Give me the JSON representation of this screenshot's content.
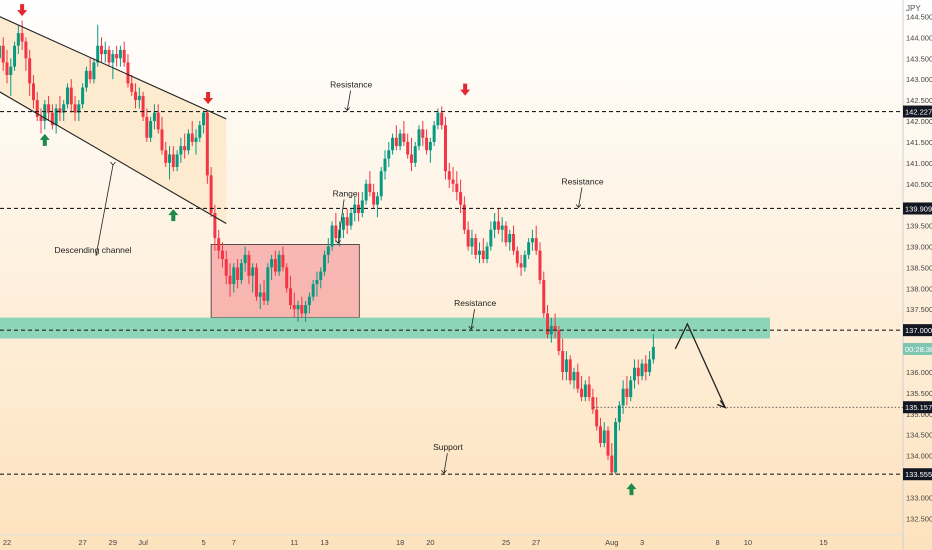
{
  "chart_data": {
    "type": "candlestick",
    "currency_label": "JPY",
    "colors": {
      "up": "#089981",
      "down": "#f23645",
      "background_top": "#ffffff",
      "background_bottom": "#fde2bd",
      "channel_fill": "#fde9cc",
      "range_fill": "#f5a3a3",
      "zone_fill": "#7fd1b5",
      "arrow_up": "#1b8a4a",
      "arrow_down": "#e0282e",
      "current_price_label": "#7fc6b0"
    },
    "y_ticks": [
      "144.500",
      "144.000",
      "143.500",
      "143.000",
      "142.500",
      "142.000",
      "141.500",
      "141.000",
      "140.500",
      "140.000",
      "139.500",
      "139.000",
      "138.500",
      "138.000",
      "137.500",
      "137.000",
      "136.500",
      "136.000",
      "135.500",
      "135.000",
      "134.500",
      "134.000",
      "133.500",
      "133.000",
      "132.500"
    ],
    "ylim": [
      132.15,
      144.75
    ],
    "x_ticks": [
      {
        "label": "22",
        "day": 0
      },
      {
        "label": "27",
        "day": 5
      },
      {
        "label": "29",
        "day": 7
      },
      {
        "label": "Jul",
        "day": 9
      },
      {
        "label": "5",
        "day": 13
      },
      {
        "label": "7",
        "day": 15
      },
      {
        "label": "11",
        "day": 19
      },
      {
        "label": "13",
        "day": 21
      },
      {
        "label": "18",
        "day": 26
      },
      {
        "label": "20",
        "day": 28
      },
      {
        "label": "25",
        "day": 33
      },
      {
        "label": "27",
        "day": 35
      },
      {
        "label": "Aug",
        "day": 40
      },
      {
        "label": "3",
        "day": 42
      },
      {
        "label": "8",
        "day": 47
      },
      {
        "label": "10",
        "day": 49
      },
      {
        "label": "15",
        "day": 54
      }
    ],
    "price_labels": [
      {
        "value": 142.227,
        "text": "142.227"
      },
      {
        "value": 139.909,
        "text": "139.909"
      },
      {
        "value": 137.0,
        "text": "137.000"
      },
      {
        "value": 135.157,
        "text": "135.157"
      },
      {
        "value": 133.555,
        "text": "133.555"
      }
    ],
    "current_price": {
      "value": 136.55,
      "text": "00:28:38"
    },
    "levels": [
      {
        "name": "Resistance",
        "value": 142.227,
        "label_day": 22.5
      },
      {
        "name": "Resistance",
        "value": 139.909,
        "label_day": 37.8
      },
      {
        "name": "Resistance",
        "value": 137.0,
        "label_day": 30.7
      },
      {
        "name": "Support",
        "value": 133.555,
        "label_day": 28.9
      }
    ],
    "zone": {
      "low": 136.8,
      "high": 137.3
    },
    "range_box": {
      "label": "Range",
      "day_start": 13.5,
      "day_end": 23.3,
      "low": 137.3,
      "high": 139.05
    },
    "channel": {
      "label": "Descending channel",
      "upper": [
        [
          -0.5,
          144.5
        ],
        [
          14.5,
          142.05
        ]
      ],
      "lower": [
        [
          -0.5,
          142.7
        ],
        [
          14.5,
          139.55
        ]
      ]
    },
    "projection": [
      [
        44.2,
        136.55
      ],
      [
        45.0,
        137.15
      ],
      [
        47.5,
        135.15
      ]
    ],
    "signals": [
      {
        "type": "down",
        "day": 1.0,
        "price": 144.65
      },
      {
        "type": "up",
        "day": 2.5,
        "price": 141.55
      },
      {
        "type": "up",
        "day": 11.0,
        "price": 139.75
      },
      {
        "type": "down",
        "day": 13.3,
        "price": 142.55
      },
      {
        "type": "down",
        "day": 30.3,
        "price": 142.75
      },
      {
        "type": "up",
        "day": 41.3,
        "price": 133.2
      }
    ],
    "candles_open_high_low_close": [
      [
        -0.5,
        143.5,
        143.9,
        143.3,
        143.8
      ],
      [
        -0.25,
        143.8,
        144.0,
        143.2,
        143.4
      ],
      [
        0.0,
        143.4,
        143.7,
        142.9,
        143.1
      ],
      [
        0.25,
        143.1,
        143.5,
        142.6,
        143.3
      ],
      [
        0.5,
        143.3,
        143.9,
        143.2,
        143.8
      ],
      [
        0.75,
        143.8,
        144.3,
        143.6,
        144.1
      ],
      [
        1.0,
        144.1,
        144.4,
        143.7,
        143.9
      ],
      [
        1.25,
        143.9,
        144.0,
        143.2,
        143.5
      ],
      [
        1.5,
        143.5,
        143.7,
        142.6,
        142.9
      ],
      [
        1.75,
        142.9,
        143.1,
        142.3,
        142.5
      ],
      [
        2.0,
        142.5,
        142.7,
        142.0,
        142.1
      ],
      [
        2.25,
        142.1,
        142.3,
        141.7,
        142.0
      ],
      [
        2.5,
        142.0,
        142.5,
        141.8,
        142.4
      ],
      [
        2.75,
        142.4,
        142.6,
        142.0,
        142.2
      ],
      [
        3.0,
        142.2,
        142.4,
        141.8,
        141.9
      ],
      [
        3.25,
        141.9,
        142.4,
        141.7,
        142.3
      ],
      [
        3.5,
        142.3,
        142.6,
        142.0,
        142.2
      ],
      [
        3.75,
        142.2,
        142.5,
        142.0,
        142.4
      ],
      [
        4.0,
        142.4,
        142.9,
        142.3,
        142.8
      ],
      [
        4.25,
        142.8,
        143.0,
        142.2,
        142.4
      ],
      [
        4.5,
        142.4,
        142.6,
        142.0,
        142.2
      ],
      [
        4.75,
        142.2,
        142.5,
        142.0,
        142.4
      ],
      [
        5.0,
        142.4,
        142.9,
        142.3,
        142.8
      ],
      [
        5.25,
        142.8,
        143.3,
        142.7,
        143.2
      ],
      [
        5.5,
        143.2,
        143.5,
        142.9,
        143.0
      ],
      [
        5.75,
        143.0,
        143.5,
        142.9,
        143.4
      ],
      [
        6.0,
        143.4,
        144.3,
        143.3,
        143.8
      ],
      [
        6.25,
        143.8,
        144.0,
        143.4,
        143.6
      ],
      [
        6.5,
        143.6,
        143.9,
        143.4,
        143.7
      ],
      [
        6.75,
        143.7,
        143.8,
        143.3,
        143.4
      ],
      [
        7.0,
        143.4,
        143.7,
        143.0,
        143.6
      ],
      [
        7.25,
        143.6,
        143.8,
        143.3,
        143.5
      ],
      [
        7.5,
        143.5,
        143.8,
        143.3,
        143.7
      ],
      [
        7.75,
        143.7,
        143.9,
        143.3,
        143.4
      ],
      [
        8.0,
        143.4,
        143.6,
        142.8,
        142.9
      ],
      [
        8.25,
        142.9,
        143.1,
        142.6,
        142.7
      ],
      [
        8.5,
        142.7,
        142.9,
        142.3,
        142.5
      ],
      [
        8.75,
        142.5,
        142.8,
        142.3,
        142.6
      ],
      [
        9.0,
        142.6,
        142.7,
        142.0,
        142.1
      ],
      [
        9.25,
        142.1,
        142.3,
        141.5,
        141.6
      ],
      [
        9.5,
        141.6,
        142.1,
        141.5,
        142.0
      ],
      [
        9.75,
        142.0,
        142.4,
        141.8,
        142.2
      ],
      [
        10.0,
        142.2,
        142.4,
        141.7,
        141.8
      ],
      [
        10.25,
        141.8,
        142.1,
        141.2,
        141.3
      ],
      [
        10.5,
        141.3,
        141.5,
        140.9,
        141.0
      ],
      [
        10.75,
        141.0,
        141.4,
        140.6,
        141.2
      ],
      [
        11.0,
        141.2,
        141.4,
        140.8,
        140.9
      ],
      [
        11.25,
        140.9,
        141.3,
        140.8,
        141.2
      ],
      [
        11.5,
        141.2,
        141.6,
        141.0,
        141.4
      ],
      [
        11.75,
        141.4,
        141.7,
        141.1,
        141.3
      ],
      [
        12.0,
        141.3,
        141.8,
        141.2,
        141.7
      ],
      [
        12.25,
        141.7,
        142.0,
        141.4,
        141.5
      ],
      [
        12.5,
        141.5,
        141.8,
        141.2,
        141.6
      ],
      [
        12.75,
        141.6,
        142.0,
        141.5,
        141.9
      ],
      [
        13.0,
        141.9,
        142.25,
        141.7,
        142.2
      ],
      [
        13.25,
        142.2,
        142.25,
        140.5,
        140.7
      ],
      [
        13.5,
        140.7,
        140.9,
        139.7,
        139.8
      ],
      [
        13.75,
        139.8,
        140.0,
        138.9,
        139.2
      ],
      [
        14.0,
        139.2,
        139.4,
        138.7,
        138.9
      ],
      [
        14.25,
        138.9,
        139.1,
        138.5,
        138.7
      ],
      [
        14.5,
        138.7,
        138.9,
        138.1,
        138.3
      ],
      [
        14.75,
        138.3,
        138.6,
        137.8,
        138.1
      ],
      [
        15.0,
        138.1,
        138.6,
        137.9,
        138.5
      ],
      [
        15.25,
        138.5,
        138.7,
        138.0,
        138.2
      ],
      [
        15.5,
        138.2,
        138.7,
        138.1,
        138.6
      ],
      [
        15.75,
        138.6,
        139.0,
        138.4,
        138.8
      ],
      [
        16.0,
        138.8,
        138.9,
        138.1,
        138.3
      ],
      [
        16.25,
        138.3,
        138.6,
        137.9,
        138.5
      ],
      [
        16.5,
        138.5,
        138.6,
        137.7,
        137.8
      ],
      [
        16.75,
        137.8,
        138.1,
        137.5,
        137.9
      ],
      [
        17.0,
        137.9,
        138.2,
        137.6,
        137.7
      ],
      [
        17.25,
        137.7,
        138.6,
        137.6,
        138.5
      ],
      [
        17.5,
        138.5,
        138.8,
        138.2,
        138.7
      ],
      [
        17.75,
        138.7,
        138.9,
        138.3,
        138.4
      ],
      [
        18.0,
        138.4,
        138.9,
        138.3,
        138.8
      ],
      [
        18.25,
        138.8,
        139.0,
        138.4,
        138.5
      ],
      [
        18.5,
        138.5,
        138.6,
        137.9,
        138.0
      ],
      [
        18.75,
        138.0,
        138.3,
        137.5,
        137.6
      ],
      [
        19.0,
        137.6,
        137.9,
        137.3,
        137.5
      ],
      [
        19.25,
        137.5,
        137.7,
        137.2,
        137.6
      ],
      [
        19.5,
        137.6,
        137.8,
        137.3,
        137.4
      ],
      [
        19.75,
        137.4,
        137.7,
        137.2,
        137.6
      ],
      [
        20.0,
        137.6,
        137.9,
        137.4,
        137.8
      ],
      [
        20.25,
        137.8,
        138.2,
        137.7,
        138.1
      ],
      [
        20.5,
        138.1,
        138.4,
        137.8,
        138.2
      ],
      [
        20.75,
        138.2,
        138.5,
        138.0,
        138.4
      ],
      [
        21.0,
        138.4,
        138.9,
        138.3,
        138.8
      ],
      [
        21.25,
        138.8,
        139.2,
        138.6,
        139.0
      ],
      [
        21.5,
        139.0,
        139.6,
        138.9,
        139.5
      ],
      [
        21.75,
        139.5,
        139.8,
        139.1,
        139.2
      ],
      [
        22.0,
        139.2,
        139.6,
        139.0,
        139.4
      ],
      [
        22.25,
        139.4,
        139.8,
        139.2,
        139.7
      ],
      [
        22.5,
        139.7,
        139.9,
        139.3,
        139.5
      ],
      [
        22.75,
        139.5,
        139.9,
        139.4,
        139.8
      ],
      [
        23.0,
        139.8,
        140.2,
        139.6,
        140.0
      ],
      [
        23.25,
        140.0,
        140.3,
        139.6,
        139.8
      ],
      [
        23.5,
        139.8,
        140.3,
        139.7,
        140.1
      ],
      [
        23.75,
        140.1,
        140.6,
        140.0,
        140.5
      ],
      [
        24.0,
        140.5,
        140.8,
        140.2,
        140.3
      ],
      [
        24.25,
        140.3,
        140.5,
        139.9,
        140.0
      ],
      [
        24.5,
        140.0,
        140.3,
        139.7,
        140.2
      ],
      [
        24.75,
        140.2,
        140.9,
        140.1,
        140.8
      ],
      [
        25.0,
        140.8,
        141.3,
        140.6,
        141.1
      ],
      [
        25.25,
        141.1,
        141.5,
        140.9,
        141.3
      ],
      [
        25.5,
        141.3,
        141.7,
        141.2,
        141.6
      ],
      [
        25.75,
        141.6,
        141.9,
        141.3,
        141.4
      ],
      [
        26.0,
        141.4,
        141.8,
        141.3,
        141.7
      ],
      [
        26.25,
        141.7,
        142.0,
        141.4,
        141.5
      ],
      [
        26.5,
        141.5,
        141.7,
        141.1,
        141.2
      ],
      [
        26.75,
        141.2,
        141.6,
        140.8,
        141.0
      ],
      [
        27.0,
        141.0,
        141.5,
        140.9,
        141.4
      ],
      [
        27.25,
        141.4,
        141.9,
        141.3,
        141.8
      ],
      [
        27.5,
        141.8,
        142.0,
        141.4,
        141.6
      ],
      [
        27.75,
        141.6,
        141.8,
        141.2,
        141.3
      ],
      [
        28.0,
        141.3,
        141.6,
        141.0,
        141.5
      ],
      [
        28.25,
        141.5,
        142.0,
        141.4,
        141.9
      ],
      [
        28.5,
        141.9,
        142.3,
        141.8,
        142.2
      ],
      [
        28.75,
        142.2,
        142.35,
        141.8,
        141.9
      ],
      [
        29.0,
        141.9,
        142.1,
        140.6,
        140.8
      ],
      [
        29.25,
        140.8,
        141.0,
        140.4,
        140.6
      ],
      [
        29.5,
        140.6,
        140.9,
        140.3,
        140.5
      ],
      [
        29.75,
        140.5,
        140.8,
        140.1,
        140.3
      ],
      [
        30.0,
        140.3,
        140.6,
        139.8,
        140.0
      ],
      [
        30.25,
        140.0,
        140.2,
        139.3,
        139.4
      ],
      [
        30.5,
        139.4,
        139.6,
        138.9,
        139.0
      ],
      [
        30.75,
        139.0,
        139.4,
        138.8,
        139.2
      ],
      [
        31.0,
        139.2,
        139.3,
        138.7,
        138.8
      ],
      [
        31.25,
        138.8,
        139.1,
        138.6,
        138.9
      ],
      [
        31.5,
        138.9,
        139.2,
        138.6,
        138.7
      ],
      [
        31.75,
        138.7,
        139.1,
        138.6,
        139.0
      ],
      [
        32.0,
        139.0,
        139.6,
        138.9,
        139.4
      ],
      [
        32.25,
        139.4,
        139.8,
        139.2,
        139.6
      ],
      [
        32.5,
        139.6,
        139.9,
        139.3,
        139.4
      ],
      [
        32.75,
        139.4,
        139.7,
        139.1,
        139.5
      ],
      [
        33.0,
        139.5,
        139.6,
        139.0,
        139.1
      ],
      [
        33.25,
        139.1,
        139.4,
        138.9,
        139.3
      ],
      [
        33.5,
        139.3,
        139.5,
        138.8,
        138.9
      ],
      [
        33.75,
        138.9,
        139.0,
        138.5,
        138.6
      ],
      [
        34.0,
        138.6,
        138.8,
        138.3,
        138.5
      ],
      [
        34.25,
        138.5,
        138.9,
        138.4,
        138.8
      ],
      [
        34.5,
        138.8,
        139.2,
        138.7,
        139.1
      ],
      [
        34.75,
        139.1,
        139.4,
        138.9,
        139.2
      ],
      [
        35.0,
        139.2,
        139.5,
        138.8,
        138.9
      ],
      [
        35.25,
        138.9,
        139.1,
        138.1,
        138.2
      ],
      [
        35.5,
        138.2,
        138.4,
        137.3,
        137.4
      ],
      [
        35.75,
        137.4,
        137.6,
        136.8,
        136.9
      ],
      [
        36.0,
        136.9,
        137.3,
        136.7,
        137.1
      ],
      [
        36.25,
        137.1,
        137.4,
        136.8,
        137.0
      ],
      [
        36.5,
        137.0,
        137.1,
        136.4,
        136.5
      ],
      [
        36.75,
        136.5,
        136.8,
        135.8,
        136.0
      ],
      [
        37.0,
        136.0,
        136.5,
        135.8,
        136.3
      ],
      [
        37.25,
        136.3,
        136.4,
        135.7,
        135.8
      ],
      [
        37.5,
        135.8,
        136.1,
        135.6,
        136.0
      ],
      [
        37.75,
        136.0,
        136.2,
        135.5,
        135.6
      ],
      [
        38.0,
        135.6,
        135.9,
        135.3,
        135.4
      ],
      [
        38.25,
        135.4,
        135.8,
        135.3,
        135.7
      ],
      [
        38.5,
        135.7,
        135.9,
        135.3,
        135.4
      ],
      [
        38.75,
        135.4,
        135.6,
        135.0,
        135.1
      ],
      [
        39.0,
        135.1,
        135.4,
        134.6,
        134.7
      ],
      [
        39.25,
        134.7,
        134.9,
        134.2,
        134.3
      ],
      [
        39.5,
        134.3,
        134.8,
        134.2,
        134.6
      ],
      [
        39.75,
        134.6,
        134.7,
        133.9,
        134.0
      ],
      [
        40.0,
        134.0,
        134.3,
        133.55,
        133.6
      ],
      [
        40.25,
        133.6,
        134.9,
        133.55,
        134.8
      ],
      [
        40.5,
        134.8,
        135.3,
        134.6,
        135.2
      ],
      [
        40.75,
        135.2,
        135.8,
        135.0,
        135.6
      ],
      [
        41.0,
        135.6,
        135.9,
        135.2,
        135.4
      ],
      [
        41.25,
        135.4,
        135.9,
        135.3,
        135.8
      ],
      [
        41.5,
        135.8,
        136.3,
        135.6,
        136.1
      ],
      [
        41.75,
        136.1,
        136.3,
        135.7,
        135.9
      ],
      [
        42.0,
        135.9,
        136.3,
        135.8,
        136.2
      ],
      [
        42.25,
        136.2,
        136.4,
        135.8,
        136.0
      ],
      [
        42.5,
        136.0,
        136.5,
        135.9,
        136.3
      ],
      [
        42.75,
        136.3,
        136.9,
        136.2,
        136.6
      ]
    ]
  }
}
